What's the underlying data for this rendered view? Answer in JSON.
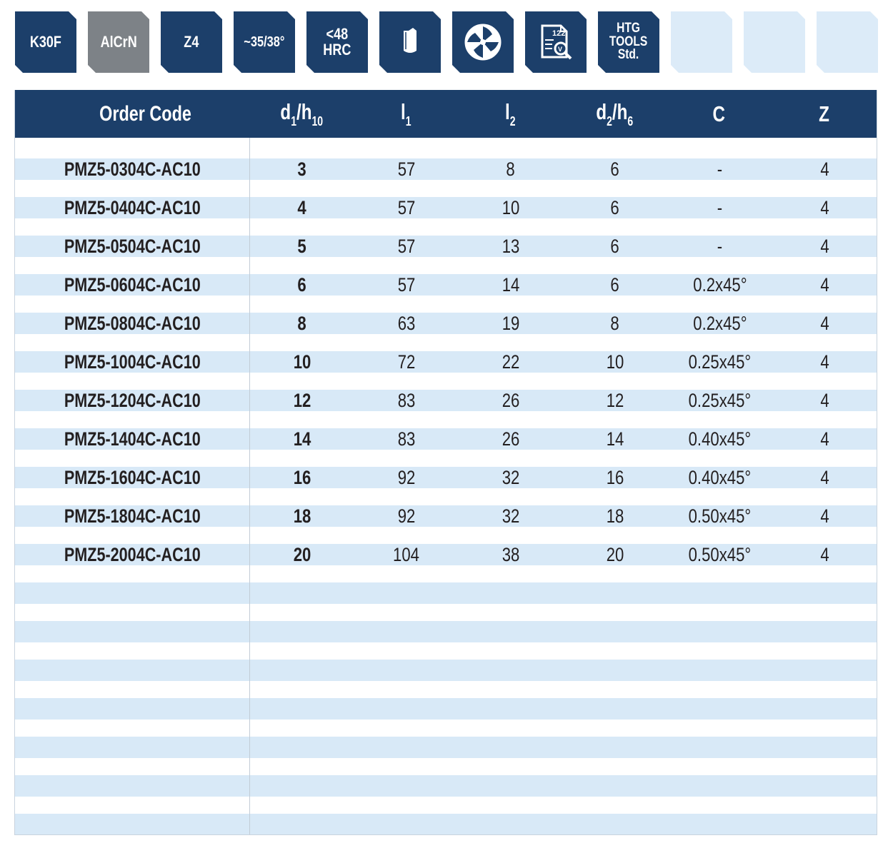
{
  "badges": [
    {
      "id": "k30f",
      "text": "K30F",
      "color": "#1c3f6a"
    },
    {
      "id": "alcrn",
      "text": "AlCrN",
      "color": "#7d8287"
    },
    {
      "id": "z4",
      "text": "Z4",
      "color": "#1c3f6a"
    },
    {
      "id": "helix",
      "text": "~35/38°",
      "color": "#1c3f6a"
    },
    {
      "id": "hrc",
      "line1": "<48",
      "line2": "HRC",
      "color": "#1c3f6a"
    },
    {
      "id": "shank",
      "icon": "shank-icon",
      "color": "#1c3f6a"
    },
    {
      "id": "cross-section",
      "icon": "flute-cross-section-icon",
      "color": "#1c3f6a"
    },
    {
      "id": "catalog",
      "icon": "catalog-page-icon",
      "page": "122",
      "color": "#1c3f6a"
    },
    {
      "id": "htg",
      "line1": "HTG",
      "line2": "TOOLS",
      "line3": "Std.",
      "color": "#1c3f6a"
    },
    {
      "id": "empty1",
      "color": "#dcebf8"
    },
    {
      "id": "empty2",
      "color": "#dcebf8"
    },
    {
      "id": "empty3",
      "color": "#dcebf8"
    }
  ],
  "table": {
    "headers": {
      "order_code": "Order Code",
      "d1": "d",
      "d1_sub": "1",
      "d1_sep": "/",
      "d1_tol": "h",
      "d1_tol_sub": "10",
      "l1": "l",
      "l1_sub": "1",
      "l2": "l",
      "l2_sub": "2",
      "d2": "d",
      "d2_sub": "2",
      "d2_sep": "/",
      "d2_tol": "h",
      "d2_tol_sub": "6",
      "c": "C",
      "z": "Z"
    },
    "rows": [
      {
        "code": "PMZ5-0304C-AC10",
        "d1": "3",
        "l1": "57",
        "l2": "8",
        "d2": "6",
        "c": "-",
        "z": "4"
      },
      {
        "code": "PMZ5-0404C-AC10",
        "d1": "4",
        "l1": "57",
        "l2": "10",
        "d2": "6",
        "c": "-",
        "z": "4"
      },
      {
        "code": "PMZ5-0504C-AC10",
        "d1": "5",
        "l1": "57",
        "l2": "13",
        "d2": "6",
        "c": "-",
        "z": "4"
      },
      {
        "code": "PMZ5-0604C-AC10",
        "d1": "6",
        "l1": "57",
        "l2": "14",
        "d2": "6",
        "c": "0.2x45°",
        "z": "4"
      },
      {
        "code": "PMZ5-0804C-AC10",
        "d1": "8",
        "l1": "63",
        "l2": "19",
        "d2": "8",
        "c": "0.2x45°",
        "z": "4"
      },
      {
        "code": "PMZ5-1004C-AC10",
        "d1": "10",
        "l1": "72",
        "l2": "22",
        "d2": "10",
        "c": "0.25x45°",
        "z": "4"
      },
      {
        "code": "PMZ5-1204C-AC10",
        "d1": "12",
        "l1": "83",
        "l2": "26",
        "d2": "12",
        "c": "0.25x45°",
        "z": "4"
      },
      {
        "code": "PMZ5-1404C-AC10",
        "d1": "14",
        "l1": "83",
        "l2": "26",
        "d2": "14",
        "c": "0.40x45°",
        "z": "4"
      },
      {
        "code": "PMZ5-1604C-AC10",
        "d1": "16",
        "l1": "92",
        "l2": "32",
        "d2": "16",
        "c": "0.40x45°",
        "z": "4"
      },
      {
        "code": "PMZ5-1804C-AC10",
        "d1": "18",
        "l1": "92",
        "l2": "32",
        "d2": "18",
        "c": "0.50x45°",
        "z": "4"
      },
      {
        "code": "PMZ5-2004C-AC10",
        "d1": "20",
        "l1": "104",
        "l2": "38",
        "d2": "20",
        "c": "0.50x45°",
        "z": "4"
      }
    ]
  },
  "colors": {
    "header_bg": "#1c3f6a",
    "stripe": "#d8e9f7",
    "coating_badge": "#7d8287",
    "text": "#231f20"
  }
}
